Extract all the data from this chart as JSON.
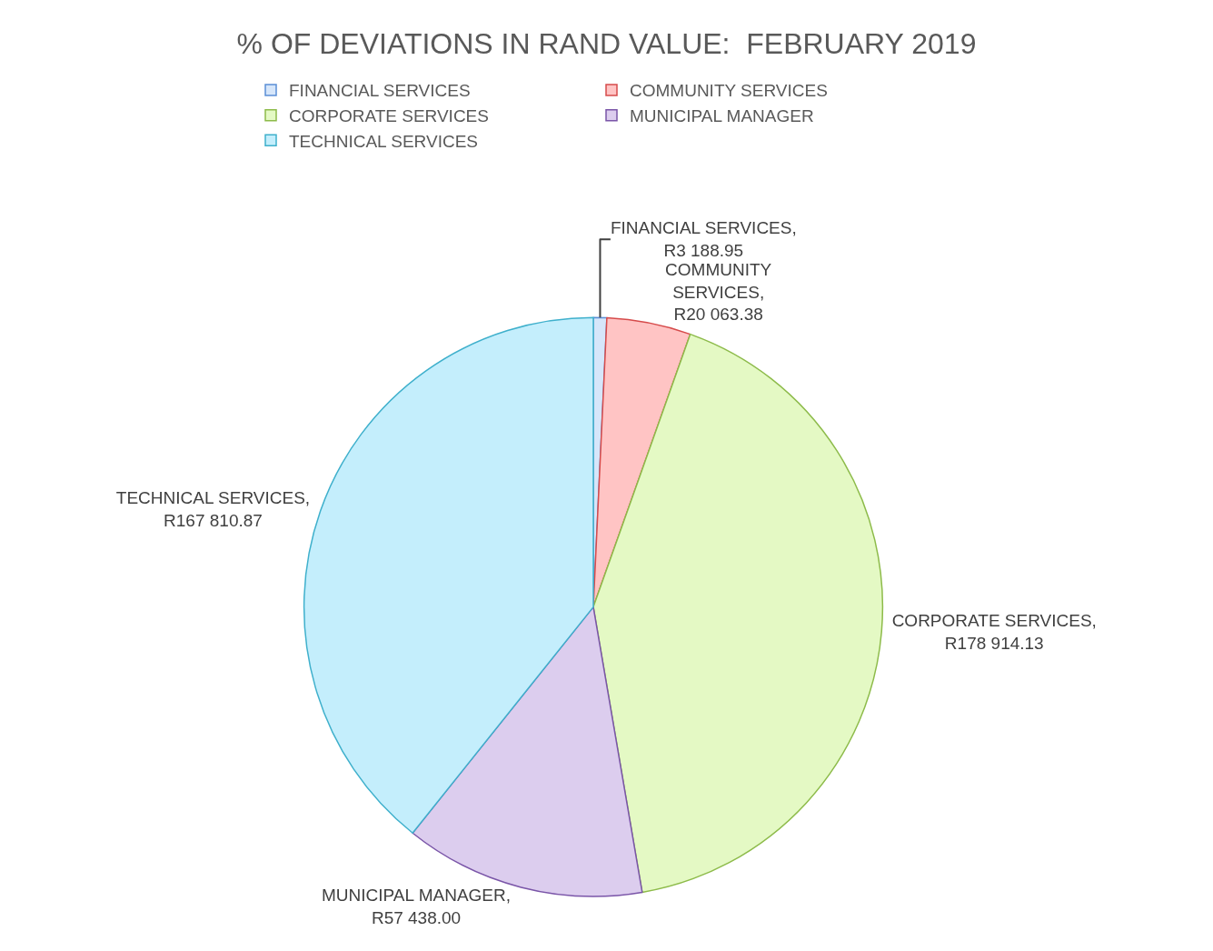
{
  "chart_data": {
    "type": "pie",
    "title": "% OF DEVIATIONS IN RAND VALUE:  FEBRUARY 2019",
    "categories": [
      "FINANCIAL SERVICES",
      "COMMUNITY SERVICES",
      "CORPORATE SERVICES",
      "MUNICIPAL MANAGER",
      "TECHNICAL SERVICES"
    ],
    "values": [
      3188.95,
      20063.38,
      178914.13,
      57438.0,
      167810.87
    ],
    "value_labels": [
      "FINANCIAL SERVICES,\nR3 188.95",
      "COMMUNITY\nSERVICES,\nR20 063.38",
      "CORPORATE SERVICES,\nR178 914.13",
      "MUNICIPAL MANAGER,\nR57 438.00",
      "TECHNICAL SERVICES,\nR167 810.87"
    ],
    "colors": [
      "#d6e6fa",
      "#ffc4c4",
      "#e4f9c4",
      "#dccdee",
      "#c4eefc"
    ],
    "legend": "top"
  }
}
